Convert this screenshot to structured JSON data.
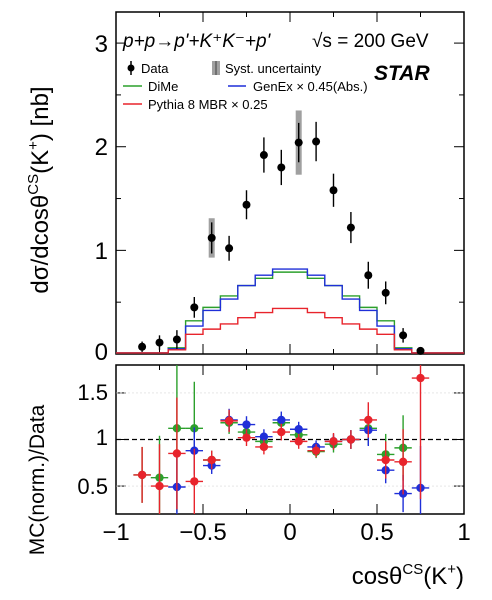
{
  "chart_data": [
    {
      "type": "scatter",
      "panel": "top",
      "title": "p+p→p'+K⁺K⁻+p'",
      "energy_label": "√s = 200 GeV",
      "experiment": "STAR",
      "ylabel": "dσ/dcosθ^CS(K⁺) [nb]",
      "xlabel": "",
      "xlim": [
        -1,
        1
      ],
      "ylim": [
        0,
        3.3
      ],
      "yticks": [
        0,
        1,
        2,
        3
      ],
      "legend": {
        "placement": "top",
        "entries": [
          {
            "label": "Data",
            "color": "#000000"
          },
          {
            "label": "Syst. uncertainty",
            "color": "#808080"
          },
          {
            "label": "DiMe",
            "color": "#2ca02c"
          },
          {
            "label": "GenEx × 0.45(Abs.)",
            "color": "#1f2fd8"
          },
          {
            "label": "Pythia 8 MBR × 0.25",
            "color": "#e8242c"
          }
        ]
      },
      "data": {
        "x": [
          -0.85,
          -0.75,
          -0.65,
          -0.55,
          -0.45,
          -0.35,
          -0.25,
          -0.15,
          -0.05,
          0.05,
          0.15,
          0.25,
          0.35,
          0.45,
          0.55,
          0.65,
          0.75
        ],
        "y": [
          0.07,
          0.11,
          0.14,
          0.45,
          1.12,
          1.02,
          1.44,
          1.92,
          1.8,
          2.04,
          2.05,
          1.58,
          1.22,
          0.76,
          0.59,
          0.18,
          0.03
        ],
        "yerr": [
          0.05,
          0.07,
          0.09,
          0.1,
          0.15,
          0.12,
          0.14,
          0.17,
          0.17,
          0.19,
          0.19,
          0.16,
          0.15,
          0.13,
          0.11,
          0.07,
          0.03
        ]
      },
      "systematics": [
        {
          "x": -0.45,
          "low": 0.93,
          "high": 1.31
        },
        {
          "x": 0.05,
          "low": 1.73,
          "high": 2.35
        }
      ],
      "series": [
        {
          "name": "DiMe",
          "color": "#2ca02c",
          "bin_edges": [
            -1,
            -0.9,
            -0.8,
            -0.7,
            -0.6,
            -0.5,
            -0.4,
            -0.3,
            -0.2,
            -0.1,
            0,
            0.1,
            0.2,
            0.3,
            0.4,
            0.5,
            0.6,
            0.7,
            0.8,
            0.9,
            1
          ],
          "values": [
            0.01,
            0.01,
            0.01,
            0.06,
            0.32,
            0.45,
            0.56,
            0.66,
            0.73,
            0.79,
            0.79,
            0.73,
            0.66,
            0.56,
            0.45,
            0.32,
            0.06,
            0.01,
            0.01,
            0.01
          ]
        },
        {
          "name": "GenEx × 0.45(Abs.)",
          "color": "#1f2fd8",
          "bin_edges": [
            -1,
            -0.9,
            -0.8,
            -0.7,
            -0.6,
            -0.5,
            -0.4,
            -0.3,
            -0.2,
            -0.1,
            0,
            0.1,
            0.2,
            0.3,
            0.4,
            0.5,
            0.6,
            0.7,
            0.8,
            0.9,
            1
          ],
          "values": [
            0.01,
            0.01,
            0.01,
            0.05,
            0.27,
            0.42,
            0.53,
            0.66,
            0.76,
            0.82,
            0.82,
            0.76,
            0.66,
            0.53,
            0.42,
            0.27,
            0.05,
            0.01,
            0.01,
            0.01
          ]
        },
        {
          "name": "Pythia 8 MBR × 0.25",
          "color": "#e8242c",
          "bin_edges": [
            -1,
            -0.9,
            -0.8,
            -0.7,
            -0.6,
            -0.5,
            -0.4,
            -0.3,
            -0.2,
            -0.1,
            0,
            0.1,
            0.2,
            0.3,
            0.4,
            0.5,
            0.6,
            0.7,
            0.8,
            0.9,
            1
          ],
          "values": [
            0.01,
            0.01,
            0.01,
            0.04,
            0.19,
            0.24,
            0.29,
            0.35,
            0.4,
            0.44,
            0.44,
            0.4,
            0.35,
            0.29,
            0.24,
            0.19,
            0.04,
            0.01,
            0.01,
            0.01
          ]
        }
      ]
    },
    {
      "type": "scatter",
      "panel": "bottom",
      "xlabel": "cosθ^CS(K⁺)",
      "ylabel": "MC(norm.)/Data",
      "xlim": [
        -1,
        1
      ],
      "ylim": [
        0.2,
        1.8
      ],
      "xticks": [
        -1,
        -0.5,
        0,
        0.5,
        1
      ],
      "xtick_labels": [
        "−1",
        "−0.5",
        "0",
        "0.5",
        "1"
      ],
      "yticks": [
        0.5,
        1,
        1.5
      ],
      "reference_line": 1,
      "series": [
        {
          "name": "DiMe",
          "color": "#2ca02c",
          "x": [
            -0.85,
            -0.75,
            -0.65,
            -0.55,
            -0.45,
            -0.35,
            -0.25,
            -0.15,
            -0.05,
            0.05,
            0.15,
            0.25,
            0.35,
            0.45,
            0.55,
            0.65
          ],
          "y": [
            0.62,
            0.59,
            1.12,
            1.12,
            0.78,
            1.18,
            1.08,
            0.98,
            1.18,
            1.05,
            0.87,
            0.95,
            1.0,
            1.12,
            0.84,
            0.91
          ],
          "yerr": [
            0.3,
            0.45,
            0.9,
            0.5,
            0.1,
            0.12,
            0.09,
            0.08,
            0.09,
            0.08,
            0.07,
            0.09,
            0.1,
            0.18,
            0.22,
            0.35
          ],
          "xerr": 0.05
        },
        {
          "name": "GenEx × 0.45(Abs.)",
          "color": "#1f2fd8",
          "x": [
            -0.65,
            -0.55,
            -0.45,
            -0.35,
            -0.25,
            -0.15,
            -0.05,
            0.05,
            0.15,
            0.25,
            0.35,
            0.45,
            0.55,
            0.65,
            0.75
          ],
          "y": [
            0.49,
            0.88,
            0.72,
            1.21,
            1.16,
            1.03,
            1.21,
            1.11,
            0.92,
            0.98,
            1.0,
            1.1,
            0.67,
            0.42,
            0.48
          ],
          "yerr": [
            0.4,
            0.25,
            0.09,
            0.12,
            0.09,
            0.08,
            0.09,
            0.08,
            0.07,
            0.08,
            0.1,
            0.17,
            0.14,
            0.2,
            0.45
          ],
          "xerr": 0.05
        },
        {
          "name": "Pythia 8 MBR × 0.25",
          "color": "#e8242c",
          "x": [
            -0.85,
            -0.75,
            -0.65,
            -0.55,
            -0.45,
            -0.35,
            -0.25,
            -0.15,
            -0.05,
            0.05,
            0.15,
            0.25,
            0.35,
            0.45,
            0.55,
            0.65,
            0.75
          ],
          "y": [
            0.62,
            0.5,
            0.85,
            0.55,
            0.78,
            1.2,
            1.02,
            0.92,
            1.08,
            0.98,
            0.88,
            0.98,
            1.0,
            1.21,
            0.78,
            0.76,
            1.66
          ],
          "yerr": [
            0.3,
            0.45,
            0.6,
            0.35,
            0.1,
            0.12,
            0.09,
            0.08,
            0.09,
            0.08,
            0.07,
            0.09,
            0.1,
            0.19,
            0.2,
            0.35,
            1.3
          ],
          "xerr": 0.05
        }
      ]
    }
  ]
}
